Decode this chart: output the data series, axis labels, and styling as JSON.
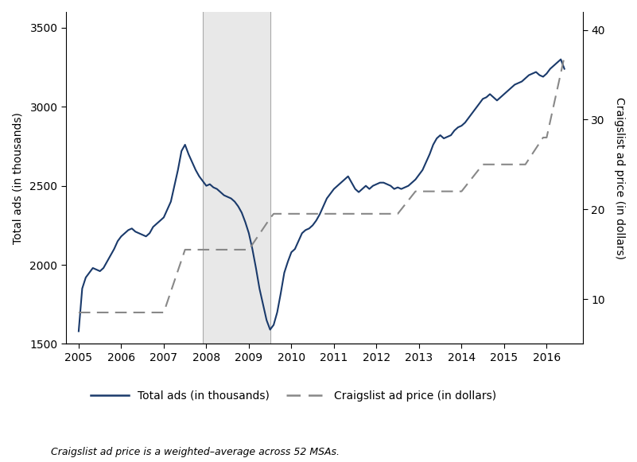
{
  "ylabel_left": "Total ads (in thousands)",
  "ylabel_right": "Craigslist ad price (in dollars)",
  "footnote": "Craigslist ad price is a weighted–average across 52 MSAs.",
  "legend_labels": [
    "Total ads (in thousands)",
    "Craigslist ad price (in dollars)"
  ],
  "recession_start": 2007.917,
  "recession_end": 2009.5,
  "xlim": [
    2004.7,
    2016.85
  ],
  "ylim_left": [
    1500,
    3600
  ],
  "ylim_right": [
    5,
    42
  ],
  "yticks_left": [
    1500,
    2000,
    2500,
    3000,
    3500
  ],
  "yticks_right": [
    10,
    20,
    30,
    40
  ],
  "xticks": [
    2005,
    2006,
    2007,
    2008,
    2009,
    2010,
    2011,
    2012,
    2013,
    2014,
    2015,
    2016
  ],
  "line_color": "#1a3a6b",
  "dash_color": "#888888",
  "shading_color": "#e8e8e8",
  "total_ads_dates": [
    2005.0,
    2005.083,
    2005.167,
    2005.25,
    2005.333,
    2005.417,
    2005.5,
    2005.583,
    2005.667,
    2005.75,
    2005.833,
    2005.917,
    2006.0,
    2006.083,
    2006.167,
    2006.25,
    2006.333,
    2006.417,
    2006.5,
    2006.583,
    2006.667,
    2006.75,
    2006.833,
    2006.917,
    2007.0,
    2007.083,
    2007.167,
    2007.25,
    2007.333,
    2007.417,
    2007.5,
    2007.583,
    2007.667,
    2007.75,
    2007.833,
    2007.917,
    2008.0,
    2008.083,
    2008.167,
    2008.25,
    2008.333,
    2008.417,
    2008.5,
    2008.583,
    2008.667,
    2008.75,
    2008.833,
    2008.917,
    2009.0,
    2009.083,
    2009.167,
    2009.25,
    2009.333,
    2009.417,
    2009.5,
    2009.583,
    2009.667,
    2009.75,
    2009.833,
    2009.917,
    2010.0,
    2010.083,
    2010.167,
    2010.25,
    2010.333,
    2010.417,
    2010.5,
    2010.583,
    2010.667,
    2010.75,
    2010.833,
    2010.917,
    2011.0,
    2011.083,
    2011.167,
    2011.25,
    2011.333,
    2011.417,
    2011.5,
    2011.583,
    2011.667,
    2011.75,
    2011.833,
    2011.917,
    2012.0,
    2012.083,
    2012.167,
    2012.25,
    2012.333,
    2012.417,
    2012.5,
    2012.583,
    2012.667,
    2012.75,
    2012.833,
    2012.917,
    2013.0,
    2013.083,
    2013.167,
    2013.25,
    2013.333,
    2013.417,
    2013.5,
    2013.583,
    2013.667,
    2013.75,
    2013.833,
    2013.917,
    2014.0,
    2014.083,
    2014.167,
    2014.25,
    2014.333,
    2014.417,
    2014.5,
    2014.583,
    2014.667,
    2014.75,
    2014.833,
    2014.917,
    2015.0,
    2015.083,
    2015.167,
    2015.25,
    2015.333,
    2015.417,
    2015.5,
    2015.583,
    2015.667,
    2015.75,
    2015.833,
    2015.917,
    2016.0,
    2016.083,
    2016.167,
    2016.25,
    2016.333,
    2016.417
  ],
  "total_ads_values": [
    1580,
    1850,
    1920,
    1950,
    1980,
    1970,
    1960,
    1980,
    2020,
    2060,
    2100,
    2150,
    2180,
    2200,
    2220,
    2230,
    2210,
    2200,
    2190,
    2180,
    2200,
    2240,
    2260,
    2280,
    2300,
    2350,
    2400,
    2500,
    2600,
    2720,
    2760,
    2700,
    2650,
    2600,
    2560,
    2530,
    2500,
    2510,
    2490,
    2480,
    2460,
    2440,
    2430,
    2420,
    2400,
    2370,
    2330,
    2270,
    2200,
    2100,
    1980,
    1850,
    1750,
    1650,
    1590,
    1620,
    1700,
    1820,
    1950,
    2020,
    2080,
    2100,
    2150,
    2200,
    2220,
    2230,
    2250,
    2280,
    2320,
    2370,
    2420,
    2450,
    2480,
    2500,
    2520,
    2540,
    2560,
    2520,
    2480,
    2460,
    2480,
    2500,
    2480,
    2500,
    2510,
    2520,
    2520,
    2510,
    2500,
    2480,
    2490,
    2480,
    2490,
    2500,
    2520,
    2540,
    2570,
    2600,
    2650,
    2700,
    2760,
    2800,
    2820,
    2800,
    2810,
    2820,
    2850,
    2870,
    2880,
    2900,
    2930,
    2960,
    2990,
    3020,
    3050,
    3060,
    3080,
    3060,
    3040,
    3060,
    3080,
    3100,
    3120,
    3140,
    3150,
    3160,
    3180,
    3200,
    3210,
    3220,
    3200,
    3190,
    3210,
    3240,
    3260,
    3280,
    3300,
    3240
  ],
  "craigs_dates": [
    2005.0,
    2005.5,
    2006.0,
    2006.5,
    2007.0,
    2007.5,
    2007.917,
    2008.0,
    2008.5,
    2008.917,
    2009.0,
    2009.5,
    2009.583,
    2010.0,
    2010.5,
    2011.0,
    2011.5,
    2012.0,
    2012.5,
    2012.917,
    2013.0,
    2013.5,
    2014.0,
    2014.5,
    2015.0,
    2015.5,
    2015.917,
    2016.0,
    2016.417
  ],
  "craigs_values": [
    8.5,
    8.5,
    8.5,
    8.5,
    8.5,
    15.5,
    15.5,
    15.5,
    15.5,
    15.5,
    15.5,
    19.0,
    19.5,
    19.5,
    19.5,
    19.5,
    19.5,
    19.5,
    19.5,
    22.0,
    22.0,
    22.0,
    22.0,
    25.0,
    25.0,
    25.0,
    28.0,
    28.0,
    37.0
  ]
}
